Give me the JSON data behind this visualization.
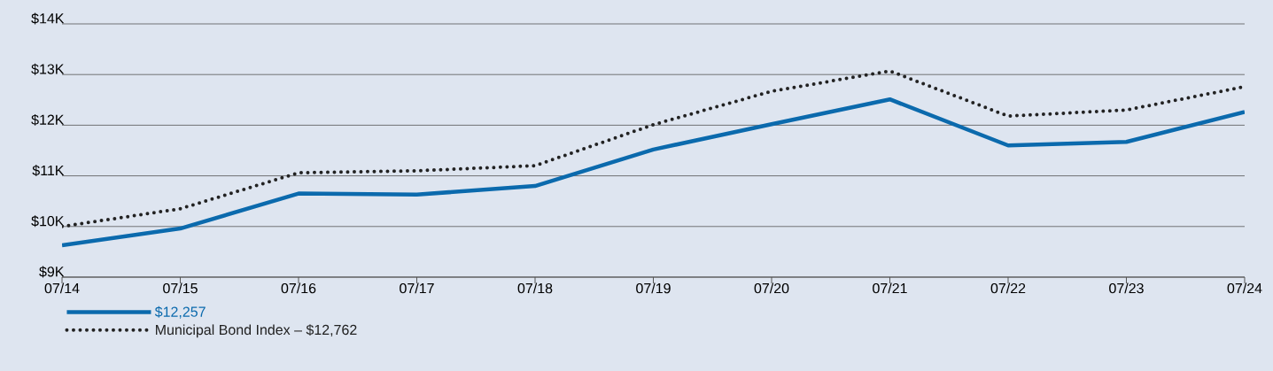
{
  "chart_data": {
    "type": "line",
    "categories": [
      "07/14",
      "07/15",
      "07/16",
      "07/17",
      "07/18",
      "07/19",
      "07/20",
      "07/21",
      "07/22",
      "07/23",
      "07/24"
    ],
    "series": [
      {
        "name": "$12,257",
        "color": "#0b6aad",
        "line_style": "solid",
        "values": [
          9630,
          9960,
          10650,
          10630,
          10800,
          11520,
          12020,
          12510,
          11600,
          11670,
          12260
        ]
      },
      {
        "name": "Municipal Bond Index – $12,762",
        "color": "#222222",
        "line_style": "dotted",
        "values": [
          10000,
          10350,
          11060,
          11100,
          11200,
          12010,
          12670,
          13070,
          12180,
          12300,
          12760
        ]
      }
    ],
    "ylim": [
      9000,
      14000
    ],
    "yticks": [
      {
        "value": 9000,
        "label": "$9K"
      },
      {
        "value": 10000,
        "label": "$10K"
      },
      {
        "value": 11000,
        "label": "$11K"
      },
      {
        "value": 12000,
        "label": "$12K"
      },
      {
        "value": 13000,
        "label": "$13K"
      },
      {
        "value": 14000,
        "label": "$14K"
      }
    ],
    "grid": "y",
    "legend": "bottom left"
  }
}
